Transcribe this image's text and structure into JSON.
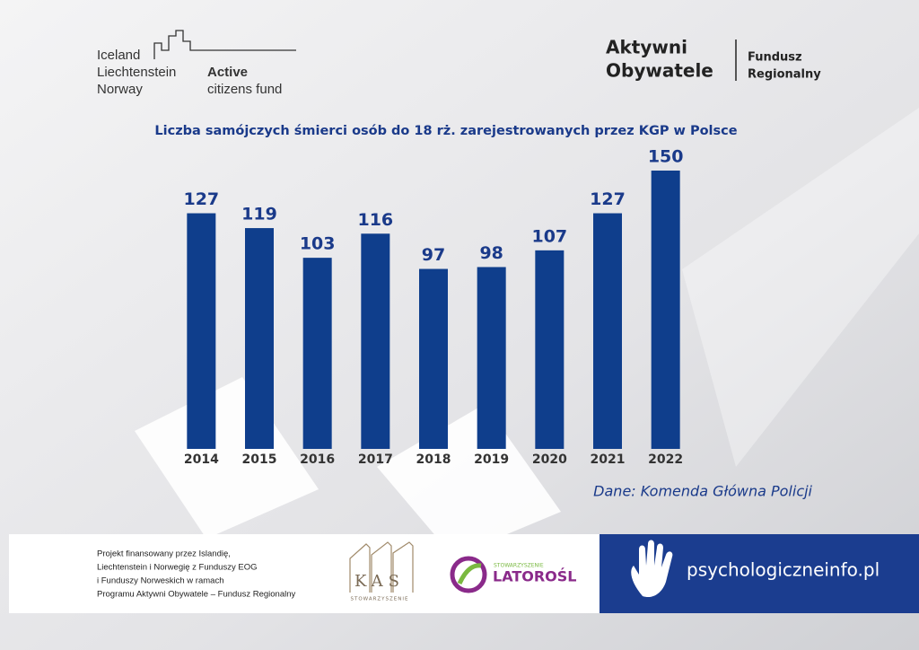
{
  "header": {
    "eea_logo": {
      "lines": [
        "Iceland",
        "Liechtenstein",
        "Norway"
      ],
      "fund": [
        "Active",
        "citizens fund"
      ]
    },
    "ao_logo": {
      "name": [
        "Aktywni",
        "Obywatele"
      ],
      "fund": [
        "Fundusz",
        "Regionalny"
      ]
    }
  },
  "chart_data": {
    "type": "bar",
    "title": "Liczba samójczych śmierci osób do 18 rż. zarejestrowanych przez KGP w Polsce",
    "categories": [
      "2014",
      "2015",
      "2016",
      "2017",
      "2018",
      "2019",
      "2020",
      "2021",
      "2022"
    ],
    "values": [
      127,
      119,
      103,
      116,
      97,
      98,
      107,
      127,
      150
    ],
    "color": "#0f3e8c"
  },
  "source": "Dane: Komenda Główna Policji",
  "footer": {
    "note": [
      "Projekt finansowany przez Islandię,",
      "Liechtenstein i Norwegię z Funduszy EOG",
      "i Funduszy Norweskich w ramach",
      "Programu Aktywni Obywatele – Fundusz Regionalny"
    ],
    "kas": {
      "name": "KAS",
      "sub": "STOWARZYSZENIE"
    },
    "latorosl": {
      "sub": "STOWARZYSZENIE",
      "name": "LATOROŚL"
    },
    "site": "psychologiczneinfo.pl"
  }
}
